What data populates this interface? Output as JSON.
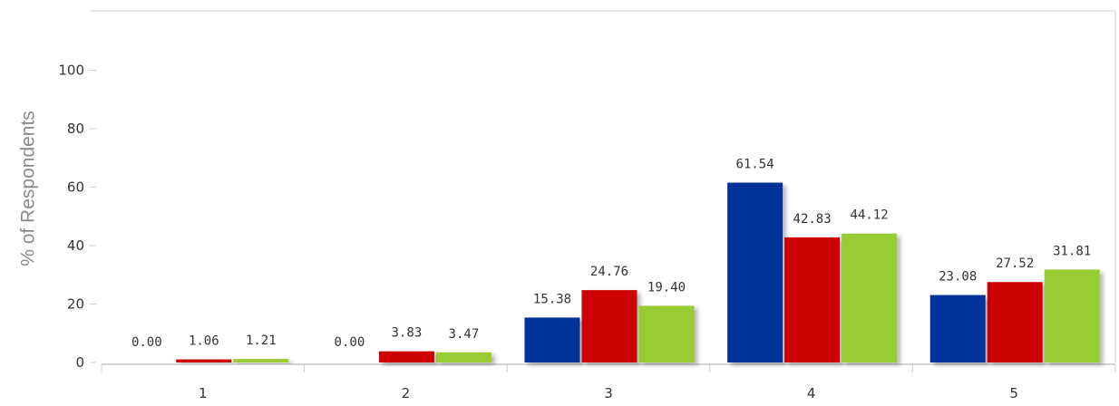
{
  "chart_data": {
    "type": "bar",
    "title": "",
    "xlabel": "",
    "ylabel": "% of Respondents",
    "ylim": [
      0,
      120
    ],
    "yticks": [
      0,
      20,
      40,
      60,
      80,
      100
    ],
    "categories": [
      "1",
      "2",
      "3",
      "4",
      "5"
    ],
    "series": [
      {
        "color": "#003399",
        "values": [
          0.0,
          0.0,
          15.38,
          61.54,
          23.08
        ],
        "labels": [
          "0.00",
          "0.00",
          "15.38",
          "61.54",
          "23.08"
        ]
      },
      {
        "color": "#cc0000",
        "values": [
          1.06,
          3.83,
          24.76,
          42.83,
          27.52
        ],
        "labels": [
          "1.06",
          "3.83",
          "24.76",
          "42.83",
          "27.52"
        ]
      },
      {
        "color": "#99cc33",
        "values": [
          1.21,
          3.47,
          19.4,
          44.12,
          31.81
        ],
        "labels": [
          "1.21",
          "3.47",
          "19.40",
          "44.12",
          "31.81"
        ]
      }
    ],
    "grid": false,
    "legend": "none"
  }
}
